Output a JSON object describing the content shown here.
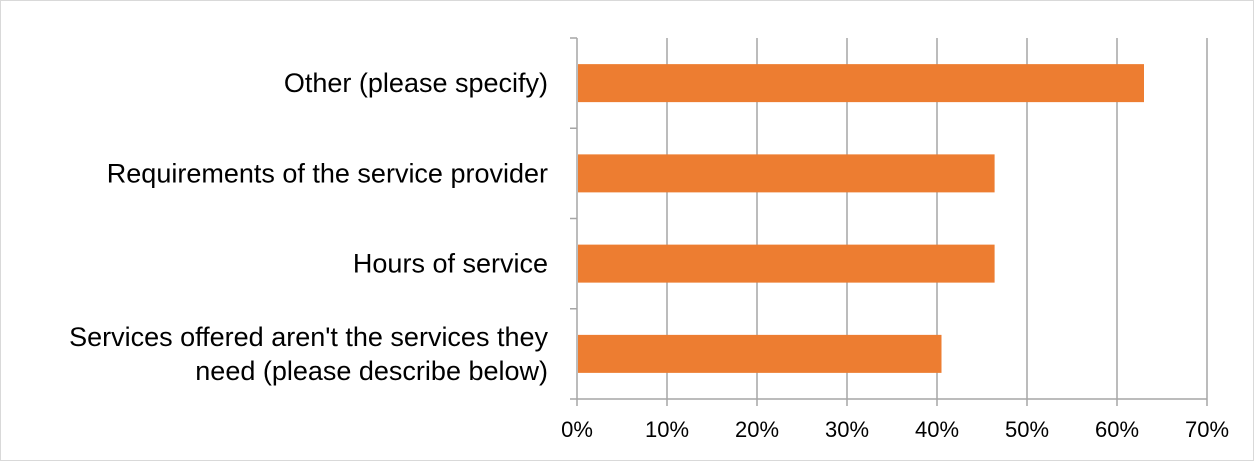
{
  "chart_data": {
    "type": "bar",
    "orientation": "horizontal",
    "categories": [
      [
        "Other (please specify)"
      ],
      [
        "Requirements of the service provider"
      ],
      [
        "Hours of service"
      ],
      [
        "Services offered aren't the services they",
        "need (please describe below)"
      ]
    ],
    "values": [
      63.0,
      46.4,
      46.4,
      40.5
    ],
    "x_ticks": [
      "0%",
      "10%",
      "20%",
      "30%",
      "40%",
      "50%",
      "60%",
      "70%"
    ],
    "xlim": [
      0,
      70
    ],
    "grid": true,
    "legend": "none",
    "title": "",
    "xlabel": "",
    "ylabel": ""
  },
  "colors": {
    "bar": "#ed7d31",
    "gridline": "#a6a6a6",
    "axis": "#a6a6a6",
    "frame": "#d9d9d9"
  }
}
